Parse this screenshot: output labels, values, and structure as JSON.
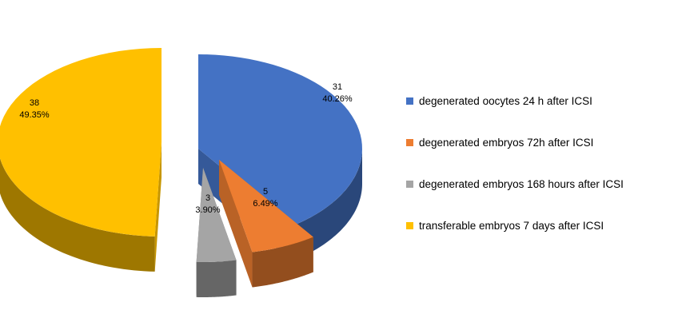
{
  "chart_data": {
    "type": "pie",
    "title": "",
    "legend_position": "right",
    "series": [
      {
        "name": "degenerated oocytes 24 h after ICSI",
        "value": 31,
        "label_value": "31",
        "label_percent": "40.26%",
        "color": "#4472C4"
      },
      {
        "name": "degenerated embryos 72h after ICSI",
        "value": 5,
        "label_value": "5",
        "label_percent": "6.49%",
        "color": "#ED7D31"
      },
      {
        "name": "degenerated embryos 168 hours after ICSI",
        "value": 3,
        "label_value": "3",
        "label_percent": "3.90%",
        "color": "#A5A5A5"
      },
      {
        "name": "transferable embryos 7 days after ICSI",
        "value": 38,
        "label_value": "38",
        "label_percent": "49.35%",
        "color": "#FFC000"
      }
    ]
  }
}
